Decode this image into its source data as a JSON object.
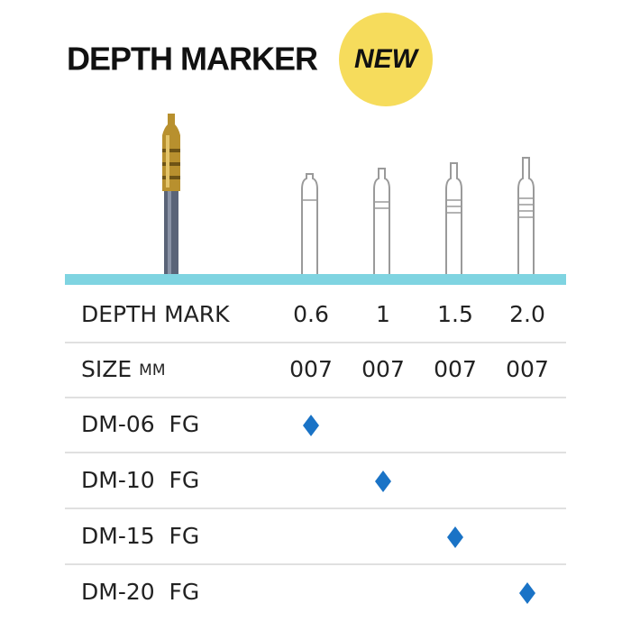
{
  "header": {
    "title": "DEPTH MARKER",
    "badge": "NEW"
  },
  "table": {
    "depth_label": "DEPTH MARK",
    "depth_values": [
      "0.6",
      "1",
      "1.5",
      "2.0"
    ],
    "size_label": "SIZE",
    "size_unit": "MM",
    "size_values": [
      "007",
      "007",
      "007",
      "007"
    ],
    "rows": [
      "DM-06  FG",
      "DM-10  FG",
      "DM-15  FG",
      "DM-20  FG"
    ]
  }
}
